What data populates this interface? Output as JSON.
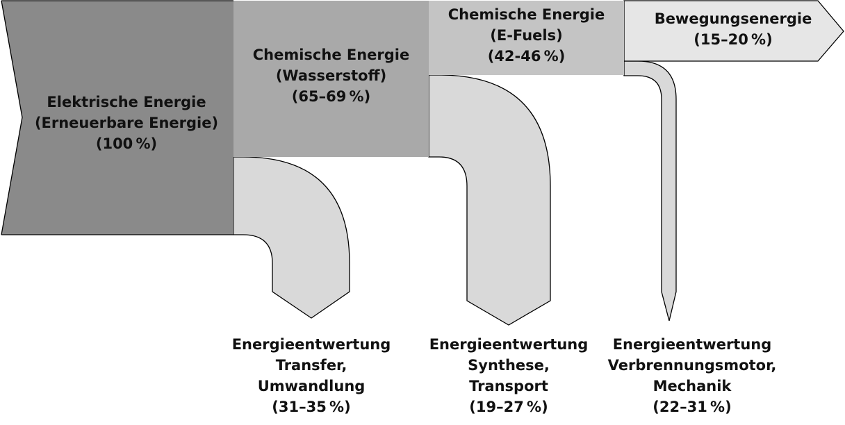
{
  "colors": {
    "stage1": "#8a8a8a",
    "stage2": "#a9a9a9",
    "stage3": "#c4c4c4",
    "stage4": "#e6e6e6",
    "loss": "#d9d9d9",
    "stroke": "#000000",
    "text": "#111111"
  },
  "nodes": {
    "elektrisch": {
      "lines": [
        "Elektrische Energie",
        "(Erneuerbare Energie)",
        "(100 %)"
      ]
    },
    "wasserstoff": {
      "lines": [
        "Chemische Energie",
        "(Wasserstoff)",
        "(65–69 %)"
      ]
    },
    "efuels": {
      "lines": [
        "Chemische Energie",
        "(E-Fuels)",
        "(42-46 %)"
      ]
    },
    "bewegung": {
      "lines": [
        "Bewegungsenergie",
        "(15–20 %)"
      ]
    }
  },
  "losses": {
    "transfer": {
      "lines": [
        "Energieentwertung",
        "Transfer,",
        "Umwandlung",
        "(31–35 %)"
      ]
    },
    "synthese": {
      "lines": [
        "Energieentwertung",
        "Synthese,",
        "Transport",
        "(19–27 %)"
      ]
    },
    "motor": {
      "lines": [
        "Energieentwertung",
        "Verbrennungsmotor,",
        "Mechanik",
        "(22–31 %)"
      ]
    }
  }
}
